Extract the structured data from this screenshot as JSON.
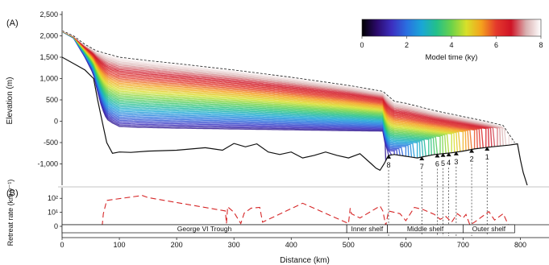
{
  "chart_data": [
    {
      "panel_label": "(A)",
      "type": "line",
      "ylabel": "Elevation (m)",
      "xlim": [
        0,
        850
      ],
      "ylim": [
        -1500,
        2500
      ],
      "y_ticks": [
        2500,
        2000,
        1500,
        1000,
        500,
        0,
        -500,
        -1000
      ],
      "y_tick_labels": [
        "2,500",
        "2,000",
        "1,500",
        "1,000",
        "500",
        "0",
        "-500",
        "-1,000"
      ],
      "colorbar": {
        "title": "Model time (ky)",
        "range": [
          0,
          8
        ],
        "ticks": [
          "0",
          "2",
          "4",
          "6",
          "8"
        ],
        "colors": [
          "#000000",
          "#2b0a6b",
          "#3c2fc0",
          "#2a6fe0",
          "#1aa6d6",
          "#23c08a",
          "#6bd24a",
          "#d8e02a",
          "#f4a21d",
          "#e4392c",
          "#cf1426",
          "#d9b0b0",
          "#ffffff"
        ]
      },
      "bed_profile": {
        "x": [
          0,
          20,
          40,
          55,
          62,
          70,
          78,
          88,
          100,
          120,
          150,
          200,
          250,
          280,
          300,
          320,
          340,
          360,
          380,
          400,
          420,
          440,
          460,
          480,
          500,
          520,
          540,
          548,
          555,
          562,
          570,
          580,
          600,
          620,
          650,
          680,
          700,
          720,
          750,
          780,
          795,
          800,
          805,
          812
        ],
        "y": [
          1500,
          1350,
          1200,
          1000,
          500,
          0,
          -500,
          -750,
          -720,
          -730,
          -700,
          -680,
          -620,
          -680,
          -520,
          -600,
          -530,
          -720,
          -780,
          -720,
          -860,
          -800,
          -720,
          -800,
          -860,
          -760,
          -1000,
          -1100,
          -1150,
          -1000,
          -800,
          -780,
          -820,
          -860,
          -780,
          -740,
          -700,
          -650,
          -600,
          -560,
          -530,
          -900,
          -1200,
          -1500
        ]
      },
      "surface_initial": {
        "x": [
          0,
          20,
          40,
          60,
          100,
          150,
          200,
          300,
          400,
          500,
          560,
          580,
          600,
          650,
          700,
          740,
          770,
          790
        ],
        "y": [
          2120,
          2000,
          1800,
          1650,
          1500,
          1420,
          1350,
          1200,
          1030,
          840,
          700,
          470,
          420,
          250,
          110,
          0,
          -100,
          -500
        ]
      },
      "surface_final": {
        "x": [
          0,
          20,
          40,
          55,
          62,
          70,
          78,
          88,
          100,
          130,
          200,
          300,
          400,
          500,
          560,
          565,
          570
        ],
        "y": [
          2100,
          1950,
          1500,
          1100,
          700,
          300,
          50,
          -40,
          -120,
          -140,
          -160,
          -180,
          -200,
          -220,
          -230,
          -600,
          -780
        ]
      },
      "snapshots_x_range": [
        0,
        800
      ],
      "grounding_line_markers": [
        {
          "label": "8",
          "x": 570
        },
        {
          "label": "7",
          "x": 628
        },
        {
          "label": "6",
          "x": 655
        },
        {
          "label": "5",
          "x": 665
        },
        {
          "label": "4",
          "x": 675
        },
        {
          "label": "3",
          "x": 688
        },
        {
          "label": "2",
          "x": 715
        },
        {
          "label": "1",
          "x": 742
        }
      ]
    },
    {
      "panel_label": "(B)",
      "type": "line",
      "ylabel": "Retreat rate (km y⁻¹)",
      "y_scale": "log",
      "y_ticks_labels": [
        "10²",
        "10¹",
        "0"
      ],
      "xlabel": "Distance (km)",
      "xlim": [
        0,
        850
      ],
      "x_ticks": [
        0,
        100,
        200,
        300,
        400,
        500,
        600,
        700,
        800
      ],
      "series": [
        {
          "line_style": "dashed",
          "color": "#d62728",
          "x": [
            70,
            72,
            78,
            140,
            150,
            285,
            287,
            289,
            300,
            312,
            318,
            330,
            345,
            350,
            420,
            500,
            503,
            505,
            520,
            555,
            560,
            565,
            570,
            590,
            600,
            615,
            630,
            650,
            660,
            670,
            680,
            690,
            700,
            705,
            712,
            720,
            730,
            745,
            755,
            770,
            780
          ],
          "log_rate": [
            0,
            0.9,
            1.85,
            2.2,
            2.05,
            1.1,
            0.2,
            1.4,
            1.0,
            0.2,
            0.95,
            1.3,
            1.35,
            0.3,
            1.65,
            0.2,
            1.3,
            0.9,
            0.6,
            1.45,
            1.1,
            0.05,
            1.1,
            0.9,
            0.4,
            1.35,
            1.2,
            0.85,
            0.5,
            0.7,
            0.3,
            0.9,
            0.6,
            0.85,
            0.1,
            0.3,
            0.6,
            1.05,
            0.45,
            0.9,
            0.0
          ]
        }
      ],
      "regions": [
        {
          "label": "George VI Trough",
          "from": 0,
          "to": 497
        },
        {
          "label": "Inner shelf",
          "from": 497,
          "to": 568
        },
        {
          "label": "Middle shelf",
          "from": 568,
          "to": 700
        },
        {
          "label": "Outer shelf",
          "from": 700,
          "to": 790
        }
      ]
    }
  ]
}
